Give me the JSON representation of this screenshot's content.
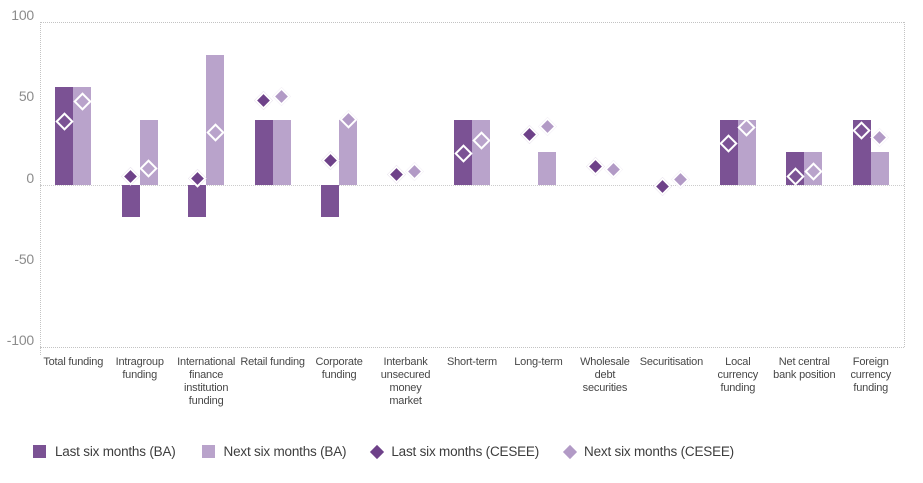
{
  "page": {
    "background": "#ffffff"
  },
  "chart_data": {
    "type": "bar",
    "title": "",
    "xlabel": "",
    "ylabel": "",
    "categories": [
      "Total funding",
      "Intragroup funding",
      "International finance institution funding",
      "Retail funding",
      "Corporate funding",
      "Interbank unsecured money market",
      "Short-term",
      "Long-term",
      "Wholesale debt securities",
      "Securitisation",
      "Local currency funding",
      "Net central bank position",
      "Foreign currency funding"
    ],
    "y_axis": {
      "min": -100,
      "max": 100,
      "tick_values": [
        100,
        50,
        0,
        -50,
        -100
      ],
      "tick_labels": [
        "100",
        "50",
        "0",
        "-50",
        "-100"
      ]
    },
    "grid": {
      "dotted_frame": true,
      "zero_line": true
    },
    "legend_position": "bottom",
    "series": [
      {
        "name": "Last six months (BA)",
        "type": "bar",
        "marker": "square",
        "color": "#7b5294",
        "values": [
          60,
          -20,
          -20,
          40,
          -20,
          null,
          40,
          null,
          null,
          null,
          40,
          20,
          40
        ]
      },
      {
        "name": "Next six months (BA)",
        "type": "bar",
        "marker": "square",
        "color": "#b9a3cb",
        "values": [
          60,
          40,
          80,
          40,
          40,
          null,
          40,
          20,
          null,
          null,
          40,
          20,
          20
        ]
      },
      {
        "name": "Last six months (CESEE)",
        "type": "scatter",
        "marker": "diamond",
        "color": "#6e4189",
        "values": [
          39,
          5,
          4,
          52,
          15,
          6,
          19,
          31,
          11,
          -1,
          25,
          5,
          33
        ]
      },
      {
        "name": "Next six months (CESEE)",
        "type": "scatter",
        "marker": "diamond",
        "color": "#b29ac6",
        "values": [
          51,
          10,
          32,
          54,
          40,
          8,
          27,
          36,
          9,
          3,
          35,
          8,
          29
        ]
      }
    ]
  },
  "colors": {
    "grid": "#c3c3c3",
    "zero_line": "#cccccc",
    "y_tick_text": "#8c8c8c",
    "x_label_text": "#474747",
    "legend_text": "#3d3d3d",
    "marker_outline": "#ffffff"
  }
}
